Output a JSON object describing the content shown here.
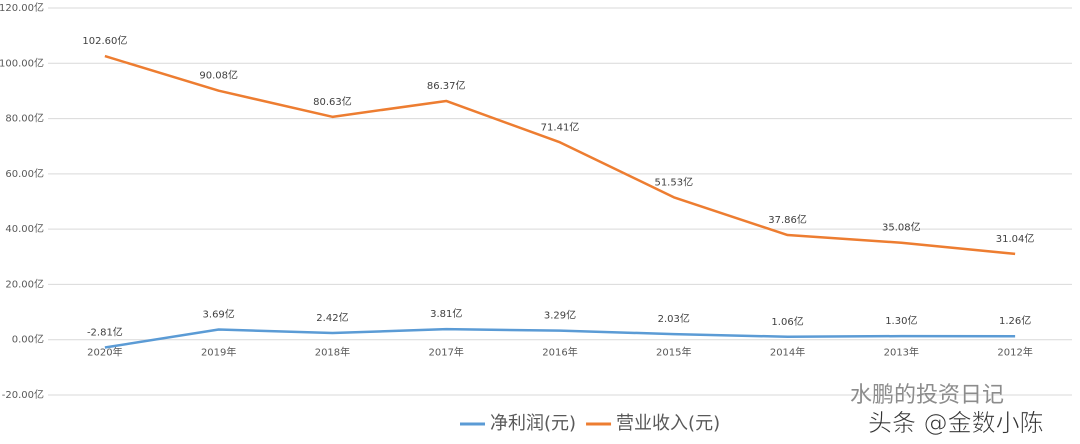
{
  "chart_data": {
    "type": "line",
    "categories": [
      "2020年",
      "2019年",
      "2018年",
      "2017年",
      "2016年",
      "2015年",
      "2014年",
      "2013年",
      "2012年"
    ],
    "series": [
      {
        "name": "净利润(元)",
        "color": "#5b9bd5",
        "values": [
          -2.81,
          3.69,
          2.42,
          3.81,
          3.29,
          2.03,
          1.06,
          1.3,
          1.26
        ],
        "value_labels": [
          "-2.81亿",
          "3.69亿",
          "2.42亿",
          "3.81亿",
          "3.29亿",
          "2.03亿",
          "1.06亿",
          "1.30亿",
          "1.26亿"
        ]
      },
      {
        "name": "营业收入(元)",
        "color": "#ed7d31",
        "values": [
          102.6,
          90.08,
          80.63,
          86.37,
          71.41,
          51.53,
          37.86,
          35.08,
          31.04
        ],
        "value_labels": [
          "102.60亿",
          "90.08亿",
          "80.63亿",
          "86.37亿",
          "71.41亿",
          "51.53亿",
          "37.86亿",
          "35.08亿",
          "31.04亿"
        ]
      }
    ],
    "ylim": [
      -20,
      120
    ],
    "yticks": [
      {
        "value": -20,
        "label": "-20.00亿"
      },
      {
        "value": 0,
        "label": "0.00亿"
      },
      {
        "value": 20,
        "label": "20.00亿"
      },
      {
        "value": 40,
        "label": "40.00亿"
      },
      {
        "value": 60,
        "label": "60.00亿"
      },
      {
        "value": 80,
        "label": "80.00亿"
      },
      {
        "value": 100,
        "label": "100.00亿"
      },
      {
        "value": 120,
        "label": "120.00亿"
      }
    ],
    "grid": true,
    "legend": "bottom",
    "annotations": [
      "水鹏的投资日记",
      "头条 @金数小陈"
    ]
  }
}
